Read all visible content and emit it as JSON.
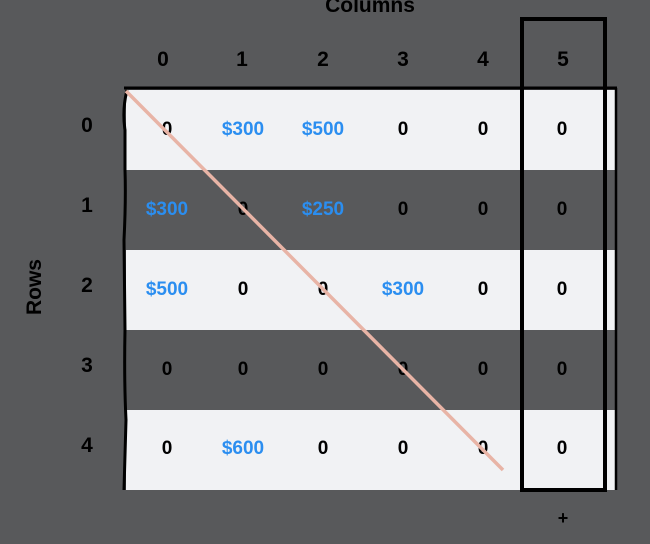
{
  "title": "Columns",
  "row_axis_label": "Rows",
  "column_headers": [
    "0",
    "1",
    "2",
    "3",
    "4",
    "5"
  ],
  "row_headers": [
    "0",
    "1",
    "2",
    "3",
    "4"
  ],
  "matrix": [
    [
      "0",
      "$300",
      "$500",
      "0",
      "0",
      "0"
    ],
    [
      "$300",
      "0",
      "$250",
      "0",
      "0",
      "0"
    ],
    [
      "$500",
      "0",
      "0",
      "$300",
      "0",
      "0"
    ],
    [
      "0",
      "0",
      "0",
      "0",
      "0",
      "0"
    ],
    [
      "0",
      "$600",
      "0",
      "0",
      "0",
      "0"
    ]
  ],
  "footer_symbol": "+",
  "colors": {
    "background": "#58595b",
    "light_band": "#f1f2f4",
    "money_text": "#2b8ef0",
    "diagonal_line": "#e8b4a6"
  }
}
